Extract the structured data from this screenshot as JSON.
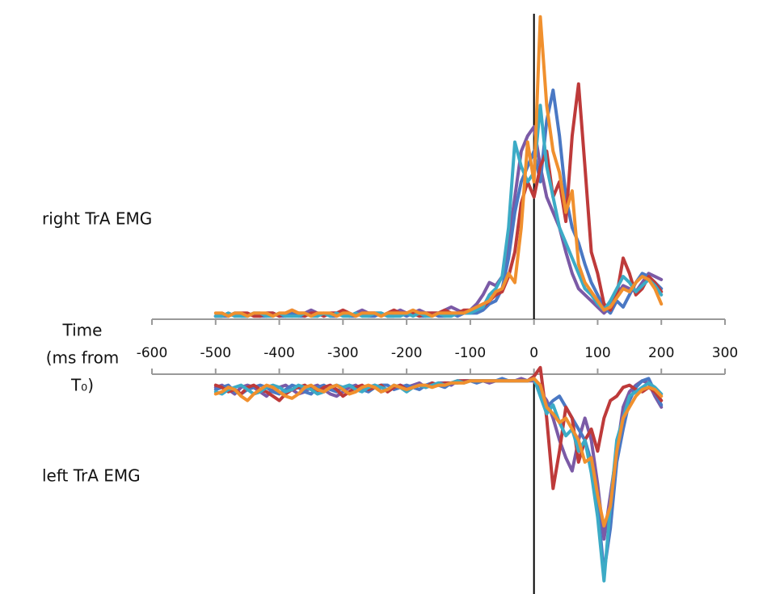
{
  "chart_data": [
    {
      "type": "line",
      "ylabel": "right TrA EMG",
      "xlabel": [
        "Time",
        "(ms from",
        "T₀)"
      ],
      "xlim": [
        -600,
        300
      ],
      "xticks": [
        -600,
        -500,
        -400,
        -300,
        -200,
        -100,
        0,
        100,
        200,
        300
      ],
      "ylim": [
        0,
        100
      ],
      "x": [
        -500,
        -490,
        -480,
        -470,
        -460,
        -450,
        -440,
        -430,
        -420,
        -410,
        -400,
        -390,
        -380,
        -370,
        -360,
        -350,
        -340,
        -330,
        -320,
        -310,
        -300,
        -290,
        -280,
        -270,
        -260,
        -250,
        -240,
        -230,
        -220,
        -210,
        -200,
        -190,
        -180,
        -170,
        -160,
        -150,
        -140,
        -130,
        -120,
        -110,
        -100,
        -90,
        -80,
        -70,
        -60,
        -50,
        -40,
        -30,
        -20,
        -10,
        0,
        10,
        20,
        30,
        40,
        50,
        60,
        70,
        80,
        90,
        100,
        110,
        120,
        130,
        140,
        150,
        160,
        170,
        180,
        190,
        200
      ],
      "series": [
        {
          "color": "#7b5aa6",
          "values": [
            1,
            2,
            1,
            2,
            2,
            1,
            2,
            1,
            2,
            2,
            1,
            2,
            1,
            2,
            2,
            3,
            2,
            1,
            2,
            2,
            2,
            1,
            2,
            3,
            2,
            2,
            2,
            1,
            2,
            3,
            2,
            2,
            3,
            2,
            2,
            2,
            3,
            4,
            3,
            2,
            3,
            5,
            8,
            12,
            11,
            14,
            25,
            40,
            55,
            60,
            63,
            50,
            40,
            35,
            30,
            22,
            15,
            10,
            8,
            6,
            4,
            2,
            4,
            8,
            11,
            10,
            9,
            12,
            15,
            14,
            13
          ]
        },
        {
          "color": "#4a78c4",
          "values": [
            1,
            1,
            1,
            2,
            1,
            1,
            2,
            1,
            1,
            2,
            1,
            1,
            2,
            1,
            1,
            2,
            1,
            2,
            1,
            1,
            2,
            1,
            1,
            2,
            1,
            1,
            2,
            1,
            1,
            2,
            1,
            2,
            1,
            1,
            2,
            1,
            1,
            2,
            1,
            2,
            2,
            2,
            3,
            5,
            6,
            10,
            20,
            35,
            45,
            50,
            55,
            45,
            65,
            75,
            60,
            40,
            30,
            25,
            18,
            12,
            8,
            4,
            2,
            6,
            4,
            8,
            12,
            15,
            14,
            12,
            10
          ]
        },
        {
          "color": "#be3a3a",
          "values": [
            1,
            1,
            2,
            1,
            2,
            2,
            1,
            1,
            2,
            2,
            1,
            2,
            3,
            2,
            1,
            2,
            2,
            1,
            2,
            2,
            3,
            2,
            1,
            2,
            2,
            2,
            1,
            2,
            3,
            2,
            2,
            2,
            1,
            2,
            2,
            2,
            3,
            2,
            2,
            3,
            3,
            3,
            4,
            6,
            8,
            9,
            14,
            22,
            38,
            45,
            40,
            50,
            55,
            40,
            45,
            32,
            60,
            77,
            50,
            22,
            15,
            5,
            3,
            8,
            20,
            15,
            8,
            10,
            14,
            12,
            9
          ]
        },
        {
          "color": "#3cabc6",
          "values": [
            1,
            1,
            2,
            1,
            1,
            1,
            2,
            2,
            1,
            1,
            2,
            1,
            1,
            1,
            2,
            1,
            1,
            2,
            1,
            2,
            1,
            1,
            2,
            1,
            1,
            2,
            2,
            1,
            1,
            1,
            2,
            1,
            2,
            1,
            1,
            2,
            1,
            1,
            2,
            2,
            2,
            3,
            4,
            8,
            10,
            14,
            30,
            58,
            50,
            45,
            48,
            70,
            50,
            40,
            30,
            25,
            20,
            15,
            10,
            8,
            5,
            3,
            6,
            10,
            14,
            12,
            9,
            11,
            13,
            11,
            8
          ]
        },
        {
          "color": "#f0902e",
          "values": [
            2,
            2,
            1,
            2,
            2,
            1,
            2,
            2,
            2,
            1,
            2,
            2,
            3,
            2,
            2,
            1,
            2,
            2,
            2,
            1,
            2,
            2,
            1,
            2,
            2,
            2,
            1,
            2,
            2,
            2,
            2,
            3,
            2,
            2,
            1,
            2,
            2,
            2,
            2,
            2,
            3,
            4,
            5,
            6,
            9,
            10,
            15,
            12,
            30,
            58,
            45,
            99,
            70,
            55,
            48,
            35,
            42,
            18,
            12,
            9,
            6,
            3,
            4,
            7,
            10,
            9,
            12,
            14,
            13,
            10,
            5
          ]
        }
      ]
    },
    {
      "type": "line",
      "ylabel": "left TrA EMG",
      "xlim": [
        -600,
        300
      ],
      "ylim": [
        -100,
        0
      ],
      "x": [
        -500,
        -490,
        -480,
        -470,
        -460,
        -450,
        -440,
        -430,
        -420,
        -410,
        -400,
        -390,
        -380,
        -370,
        -360,
        -350,
        -340,
        -330,
        -320,
        -310,
        -300,
        -290,
        -280,
        -270,
        -260,
        -250,
        -240,
        -230,
        -220,
        -210,
        -200,
        -190,
        -180,
        -170,
        -160,
        -150,
        -140,
        -130,
        -120,
        -110,
        -100,
        -90,
        -80,
        -70,
        -60,
        -50,
        -40,
        -30,
        -20,
        -10,
        0,
        10,
        20,
        30,
        40,
        50,
        60,
        70,
        80,
        90,
        100,
        110,
        120,
        130,
        140,
        150,
        160,
        170,
        180,
        190,
        200
      ],
      "series": [
        {
          "color": "#7b5aa6",
          "values": [
            -6,
            -5,
            -7,
            -9,
            -6,
            -5,
            -6,
            -8,
            -10,
            -7,
            -6,
            -5,
            -7,
            -9,
            -8,
            -6,
            -5,
            -7,
            -9,
            -10,
            -8,
            -6,
            -5,
            -7,
            -6,
            -5,
            -8,
            -7,
            -6,
            -5,
            -6,
            -5,
            -4,
            -6,
            -5,
            -4,
            -4,
            -5,
            -3,
            -3,
            -3,
            -3,
            -3,
            -4,
            -3,
            -3,
            -3,
            -3,
            -2,
            -3,
            -3,
            -8,
            -12,
            -20,
            -30,
            -38,
            -44,
            -30,
            -20,
            -30,
            -50,
            -75,
            -55,
            -35,
            -15,
            -8,
            -5,
            -3,
            -4,
            -10,
            -15
          ]
        },
        {
          "color": "#4a78c4",
          "values": [
            -7,
            -6,
            -5,
            -8,
            -9,
            -7,
            -6,
            -5,
            -6,
            -8,
            -9,
            -7,
            -5,
            -6,
            -8,
            -9,
            -6,
            -5,
            -7,
            -8,
            -6,
            -5,
            -6,
            -7,
            -8,
            -6,
            -5,
            -5,
            -7,
            -6,
            -5,
            -6,
            -7,
            -5,
            -4,
            -5,
            -6,
            -4,
            -4,
            -3,
            -3,
            -4,
            -3,
            -3,
            -3,
            -2,
            -3,
            -3,
            -3,
            -3,
            -2,
            -8,
            -15,
            -12,
            -10,
            -15,
            -20,
            -25,
            -30,
            -40,
            -60,
            -90,
            -70,
            -40,
            -25,
            -12,
            -6,
            -3,
            -2,
            -8,
            -14
          ]
        },
        {
          "color": "#be3a3a",
          "values": [
            -5,
            -6,
            -8,
            -7,
            -9,
            -6,
            -5,
            -7,
            -8,
            -10,
            -12,
            -9,
            -7,
            -6,
            -5,
            -7,
            -8,
            -6,
            -5,
            -7,
            -10,
            -8,
            -6,
            -5,
            -7,
            -6,
            -5,
            -8,
            -6,
            -5,
            -7,
            -6,
            -5,
            -6,
            -4,
            -5,
            -4,
            -4,
            -3,
            -3,
            -3,
            -3,
            -3,
            -3,
            -3,
            -3,
            -3,
            -3,
            -3,
            -3,
            -1,
            3,
            -20,
            -52,
            -35,
            -15,
            -20,
            -40,
            -30,
            -25,
            -35,
            -20,
            -12,
            -10,
            -6,
            -5,
            -7,
            -8,
            -6,
            -8,
            -12
          ]
        },
        {
          "color": "#3cabc6",
          "values": [
            -8,
            -9,
            -7,
            -6,
            -5,
            -7,
            -9,
            -8,
            -6,
            -5,
            -6,
            -8,
            -7,
            -5,
            -6,
            -7,
            -9,
            -8,
            -6,
            -5,
            -6,
            -5,
            -7,
            -8,
            -6,
            -5,
            -6,
            -7,
            -5,
            -6,
            -8,
            -6,
            -5,
            -6,
            -5,
            -4,
            -5,
            -4,
            -3,
            -4,
            -3,
            -3,
            -3,
            -3,
            -3,
            -3,
            -3,
            -3,
            -3,
            -3,
            -2,
            -10,
            -18,
            -14,
            -22,
            -28,
            -25,
            -35,
            -30,
            -45,
            -65,
            -94,
            -60,
            -30,
            -20,
            -10,
            -8,
            -6,
            -4,
            -6,
            -9
          ]
        },
        {
          "color": "#f0902e",
          "values": [
            -9,
            -8,
            -6,
            -7,
            -10,
            -12,
            -9,
            -7,
            -5,
            -6,
            -8,
            -10,
            -11,
            -9,
            -6,
            -5,
            -7,
            -8,
            -6,
            -5,
            -7,
            -9,
            -8,
            -6,
            -5,
            -6,
            -8,
            -7,
            -5,
            -6,
            -7,
            -6,
            -5,
            -5,
            -6,
            -5,
            -5,
            -4,
            -4,
            -4,
            -3,
            -3,
            -3,
            -3,
            -3,
            -3,
            -3,
            -3,
            -3,
            -3,
            -2,
            -5,
            -15,
            -18,
            -22,
            -20,
            -25,
            -30,
            -40,
            -38,
            -55,
            -69,
            -60,
            -35,
            -20,
            -15,
            -10,
            -7,
            -6,
            -7,
            -10
          ]
        }
      ]
    }
  ]
}
